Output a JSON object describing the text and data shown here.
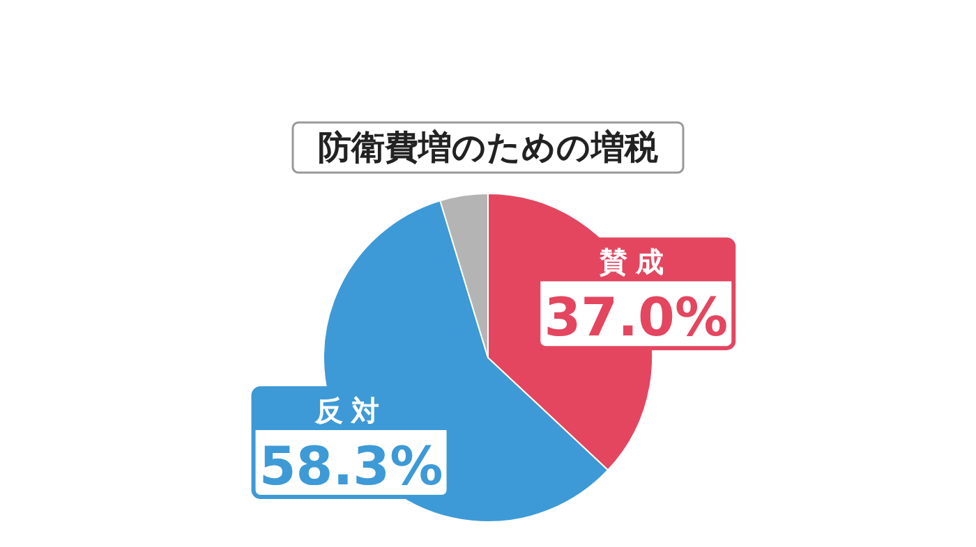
{
  "chart_data": {
    "type": "pie",
    "title": "防衛費増のための増税",
    "categories": [
      "賛成",
      "反対",
      null
    ],
    "values": [
      37.0,
      58.3,
      4.7
    ],
    "colors": [
      "#e4465f",
      "#3d9ad6",
      "#b4b4b4"
    ],
    "value_labels": [
      "37.0%",
      "58.3%",
      null
    ]
  }
}
